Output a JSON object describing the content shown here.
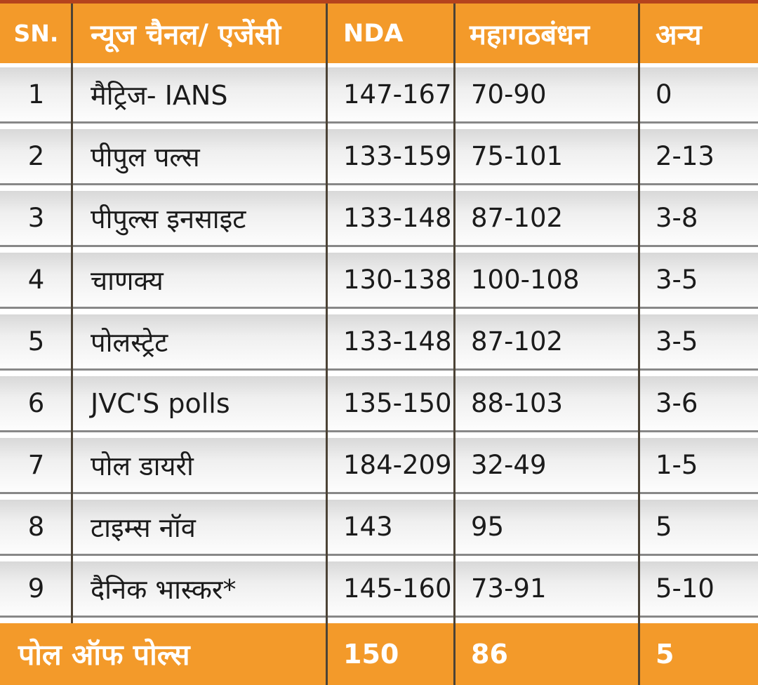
{
  "colors": {
    "accent_orange": "#f39a2a",
    "top_strip_red": "#b5431d",
    "column_divider": "#4c4336",
    "row_separator": "#888888",
    "row_background_top": "#d8d8d8",
    "row_background_bottom": "#fdfdfd",
    "body_text": "#1b1b1b",
    "header_text": "#ffffff"
  },
  "chart_data": {
    "type": "table",
    "columns": [
      "SN.",
      "न्यूज चैनल/ एजेंसी",
      "NDA",
      "महागठबंधन",
      "अन्य"
    ],
    "rows": [
      {
        "sn": "1",
        "agency": "मैट्रिज- IANS",
        "nda": "147-167",
        "mahagathbandhan": "70-90",
        "others": "0"
      },
      {
        "sn": "2",
        "agency": "पीपुल पल्स",
        "nda": "133-159",
        "mahagathbandhan": "75-101",
        "others": "2-13"
      },
      {
        "sn": "3",
        "agency": "पीपुल्स इनसाइट",
        "nda": "133-148",
        "mahagathbandhan": "87-102",
        "others": "3-8"
      },
      {
        "sn": "4",
        "agency": "चाणक्य",
        "nda": "130-138",
        "mahagathbandhan": "100-108",
        "others": "3-5"
      },
      {
        "sn": "5",
        "agency": "पोलस्ट्रेट",
        "nda": "133-148",
        "mahagathbandhan": "87-102",
        "others": "3-5"
      },
      {
        "sn": "6",
        "agency": "JVC'S polls",
        "nda": "135-150",
        "mahagathbandhan": "88-103",
        "others": "3-6"
      },
      {
        "sn": "7",
        "agency": "पोल डायरी",
        "nda": "184-209",
        "mahagathbandhan": "32-49",
        "others": "1-5"
      },
      {
        "sn": "8",
        "agency": "टाइम्स नॉव",
        "nda": "143",
        "mahagathbandhan": "95",
        "others": "5"
      },
      {
        "sn": "9",
        "agency": "दैनिक भास्कर*",
        "nda": "145-160",
        "mahagathbandhan": "73-91",
        "others": "5-10"
      }
    ],
    "footer": {
      "label": "पोल ऑफ पोल्स",
      "nda": "150",
      "mahagathbandhan": "86",
      "others": "5"
    }
  }
}
